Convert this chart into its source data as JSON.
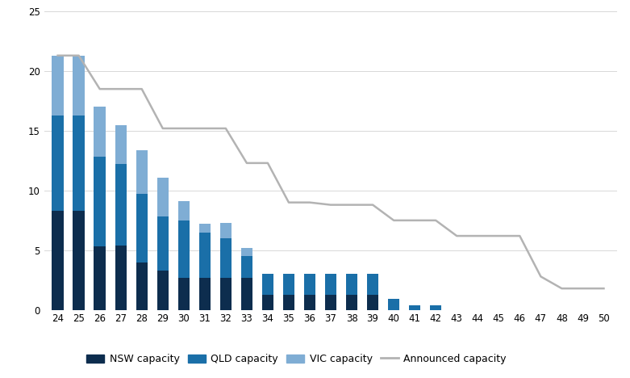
{
  "x_labels": [
    24,
    25,
    26,
    27,
    28,
    29,
    30,
    31,
    32,
    33,
    34,
    35,
    36,
    37,
    38,
    39,
    40,
    41,
    42,
    43,
    44,
    45,
    46,
    47,
    48,
    49,
    50
  ],
  "nsw": [
    8.3,
    8.3,
    5.3,
    5.4,
    4.0,
    3.3,
    2.7,
    2.7,
    2.7,
    2.7,
    1.3,
    1.3,
    1.3,
    1.3,
    1.3,
    1.3,
    0.0,
    0.0,
    0.0,
    0.0,
    0.0,
    0.0,
    0.0,
    0.0,
    0.0,
    0.0,
    0.0
  ],
  "qld": [
    8.0,
    8.0,
    7.5,
    6.8,
    5.7,
    4.5,
    4.8,
    3.8,
    3.3,
    1.8,
    1.7,
    1.7,
    1.7,
    1.7,
    1.7,
    1.7,
    0.9,
    0.4,
    0.4,
    0.0,
    0.0,
    0.0,
    0.0,
    0.0,
    0.0,
    0.0,
    0.0
  ],
  "vic": [
    5.0,
    5.0,
    4.2,
    3.3,
    3.7,
    3.3,
    1.6,
    0.7,
    1.3,
    0.7,
    0.0,
    0.0,
    0.0,
    0.0,
    0.0,
    0.0,
    0.0,
    0.0,
    0.0,
    0.0,
    0.0,
    0.0,
    0.0,
    0.0,
    0.0,
    0.0,
    0.0
  ],
  "announced": [
    21.3,
    21.3,
    18.5,
    18.5,
    18.5,
    15.2,
    15.2,
    15.2,
    15.2,
    12.3,
    12.3,
    9.0,
    9.0,
    8.8,
    8.8,
    8.8,
    7.5,
    7.5,
    7.5,
    6.2,
    6.2,
    6.2,
    6.2,
    2.8,
    1.8,
    1.8,
    1.8
  ],
  "color_nsw": "#0d2d4e",
  "color_qld": "#1a6fa8",
  "color_vic": "#7fadd4",
  "color_announced": "#b3b3b3",
  "background_color": "#ffffff",
  "ylim": [
    0,
    25
  ],
  "yticks": [
    0,
    5,
    10,
    15,
    20,
    25
  ],
  "legend_labels": [
    "NSW capacity",
    "QLD capacity",
    "VIC capacity",
    "Announced capacity"
  ]
}
